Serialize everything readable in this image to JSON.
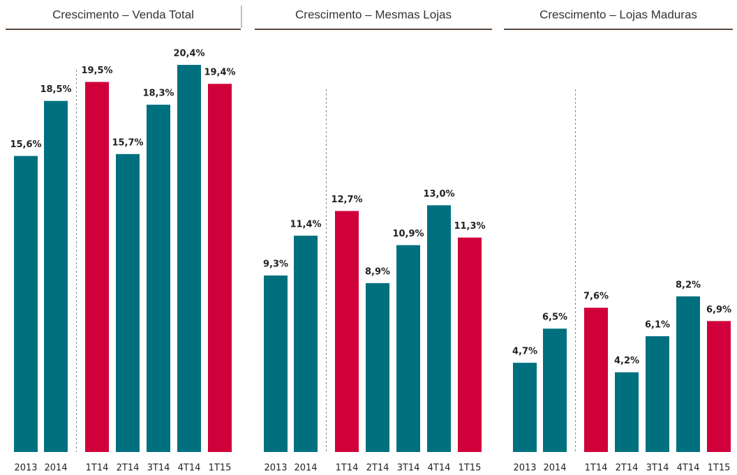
{
  "chart_data": [
    {
      "type": "bar",
      "title": "Crescimento – Venda Total",
      "categories": [
        "2013",
        "2014",
        "1T14",
        "2T14",
        "3T14",
        "4T14",
        "1T15"
      ],
      "values": [
        15.6,
        18.5,
        19.5,
        15.7,
        18.3,
        20.4,
        19.4
      ],
      "value_labels": [
        "15,6%",
        "18,5%",
        "19,5%",
        "15,7%",
        "18,3%",
        "20,4%",
        "19,4%"
      ],
      "colors": [
        "#00707f",
        "#00707f",
        "#d0003a",
        "#00707f",
        "#00707f",
        "#00707f",
        "#d0003a"
      ]
    },
    {
      "type": "bar",
      "title": "Crescimento – Mesmas Lojas",
      "categories": [
        "2013",
        "2014",
        "1T14",
        "2T14",
        "3T14",
        "4T14",
        "1T15"
      ],
      "values": [
        9.3,
        11.4,
        12.7,
        8.9,
        10.9,
        13.0,
        11.3
      ],
      "value_labels": [
        "9,3%",
        "11,4%",
        "12,7%",
        "8,9%",
        "10,9%",
        "13,0%",
        "11,3%"
      ],
      "colors": [
        "#00707f",
        "#00707f",
        "#d0003a",
        "#00707f",
        "#00707f",
        "#00707f",
        "#d0003a"
      ]
    },
    {
      "type": "bar",
      "title": "Crescimento – Lojas Maduras",
      "categories": [
        "2013",
        "2014",
        "1T14",
        "2T14",
        "3T14",
        "4T14",
        "1T15"
      ],
      "values": [
        4.7,
        6.5,
        7.6,
        4.2,
        6.1,
        8.2,
        6.9
      ],
      "value_labels": [
        "4,7%",
        "6,5%",
        "7,6%",
        "4,2%",
        "6,1%",
        "8,2%",
        "6,9%"
      ],
      "colors": [
        "#00707f",
        "#00707f",
        "#d0003a",
        "#00707f",
        "#00707f",
        "#00707f",
        "#d0003a"
      ]
    }
  ]
}
